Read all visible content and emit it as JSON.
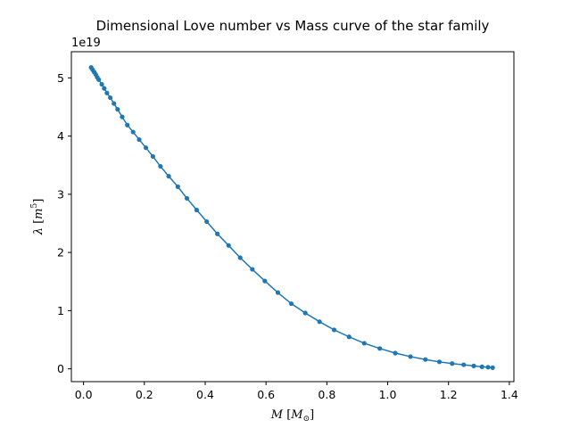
{
  "chart_data": {
    "type": "line",
    "title": "Dimensional Love number vs Mass curve of the star family",
    "xlabel": "M [M⊙]",
    "ylabel": "λ [m⁵]",
    "y_offset_text": "1e19",
    "xlim": [
      -0.04,
      1.415
    ],
    "ylim": [
      -0.22,
      5.45
    ],
    "xticks": [
      0.0,
      0.2,
      0.4,
      0.6,
      0.8,
      1.0,
      1.2,
      1.4
    ],
    "xtick_labels": [
      "0.0",
      "0.2",
      "0.4",
      "0.6",
      "0.8",
      "1.0",
      "1.2",
      "1.4"
    ],
    "yticks": [
      0,
      1,
      2,
      3,
      4,
      5
    ],
    "ytick_labels": [
      "0",
      "1",
      "2",
      "3",
      "4",
      "5"
    ],
    "series_color": "#1f77b4",
    "series": [
      {
        "x": [
          0.025,
          0.03,
          0.035,
          0.04,
          0.045,
          0.05,
          0.06,
          0.068,
          0.077,
          0.088,
          0.1,
          0.112,
          0.127,
          0.144,
          0.163,
          0.183,
          0.205,
          0.228,
          0.253,
          0.28,
          0.31,
          0.34,
          0.372,
          0.405,
          0.44,
          0.477,
          0.515,
          0.555,
          0.596,
          0.639,
          0.683,
          0.729,
          0.776,
          0.824,
          0.873,
          0.923,
          0.974,
          1.025,
          1.075,
          1.124,
          1.17,
          1.212,
          1.25,
          1.283,
          1.31,
          1.33,
          1.345
        ],
        "y": [
          5.18,
          5.14,
          5.1,
          5.06,
          5.01,
          4.97,
          4.89,
          4.82,
          4.74,
          4.66,
          4.56,
          4.46,
          4.33,
          4.19,
          4.07,
          3.94,
          3.8,
          3.65,
          3.48,
          3.31,
          3.13,
          2.93,
          2.73,
          2.53,
          2.32,
          2.12,
          1.91,
          1.71,
          1.51,
          1.31,
          1.12,
          0.96,
          0.81,
          0.67,
          0.55,
          0.44,
          0.35,
          0.27,
          0.21,
          0.16,
          0.12,
          0.09,
          0.07,
          0.05,
          0.035,
          0.028,
          0.02
        ]
      }
    ]
  }
}
